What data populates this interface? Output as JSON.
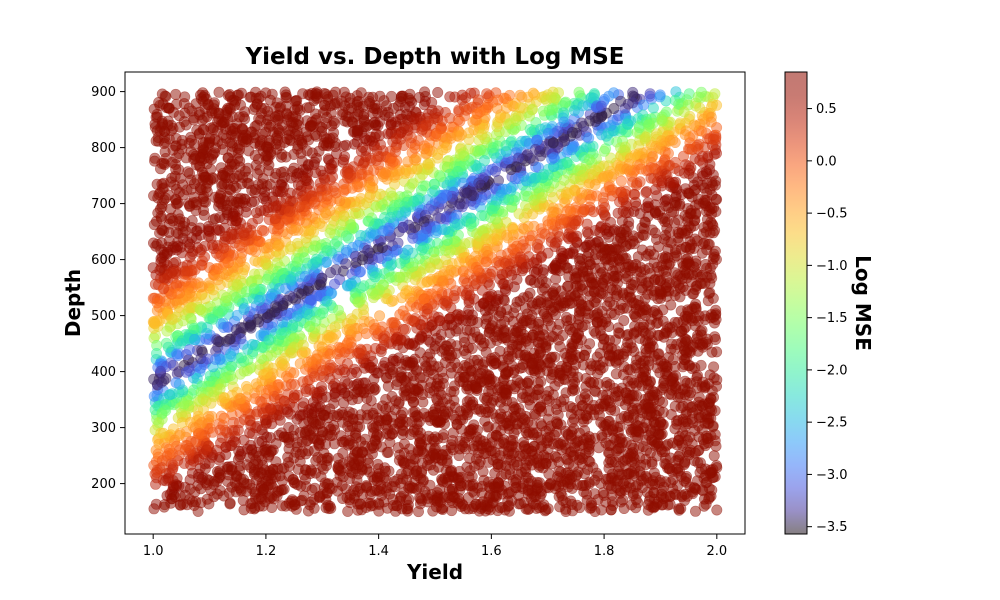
{
  "chart_data": {
    "type": "scatter",
    "title": "Yield vs. Depth with Log MSE",
    "xlabel": "Yield",
    "ylabel": "Depth",
    "xlim": [
      0.95,
      2.05
    ],
    "ylim": [
      110,
      935
    ],
    "x_ticks": [
      1.0,
      1.2,
      1.4,
      1.6,
      1.8,
      2.0
    ],
    "x_tick_labels": [
      "1.0",
      "1.2",
      "1.4",
      "1.6",
      "1.8",
      "2.0"
    ],
    "y_ticks": [
      200,
      300,
      400,
      500,
      600,
      700,
      800,
      900
    ],
    "y_tick_labels": [
      "200",
      "300",
      "400",
      "500",
      "600",
      "700",
      "800",
      "900"
    ],
    "grid": false,
    "point_alpha": 0.5,
    "point_count": 7000,
    "data_domain": {
      "x": [
        1.0,
        2.0
      ],
      "y": [
        150,
        900
      ]
    },
    "relation": "log_mse = log(((depth - (600*yield - 220)) / 150)^2 + 0.03)",
    "colorbar": {
      "label": "Log MSE",
      "range": [
        -3.57,
        0.85
      ],
      "ticks": [
        0.5,
        0.0,
        -0.5,
        -1.0,
        -1.5,
        -2.0,
        -2.5,
        -3.0,
        -3.5
      ],
      "tick_labels": [
        "0.5",
        "0.0",
        "−0.5",
        "−1.0",
        "−1.5",
        "−2.0",
        "−2.5",
        "−3.0",
        "−3.5"
      ],
      "colormap": "turbo"
    }
  }
}
